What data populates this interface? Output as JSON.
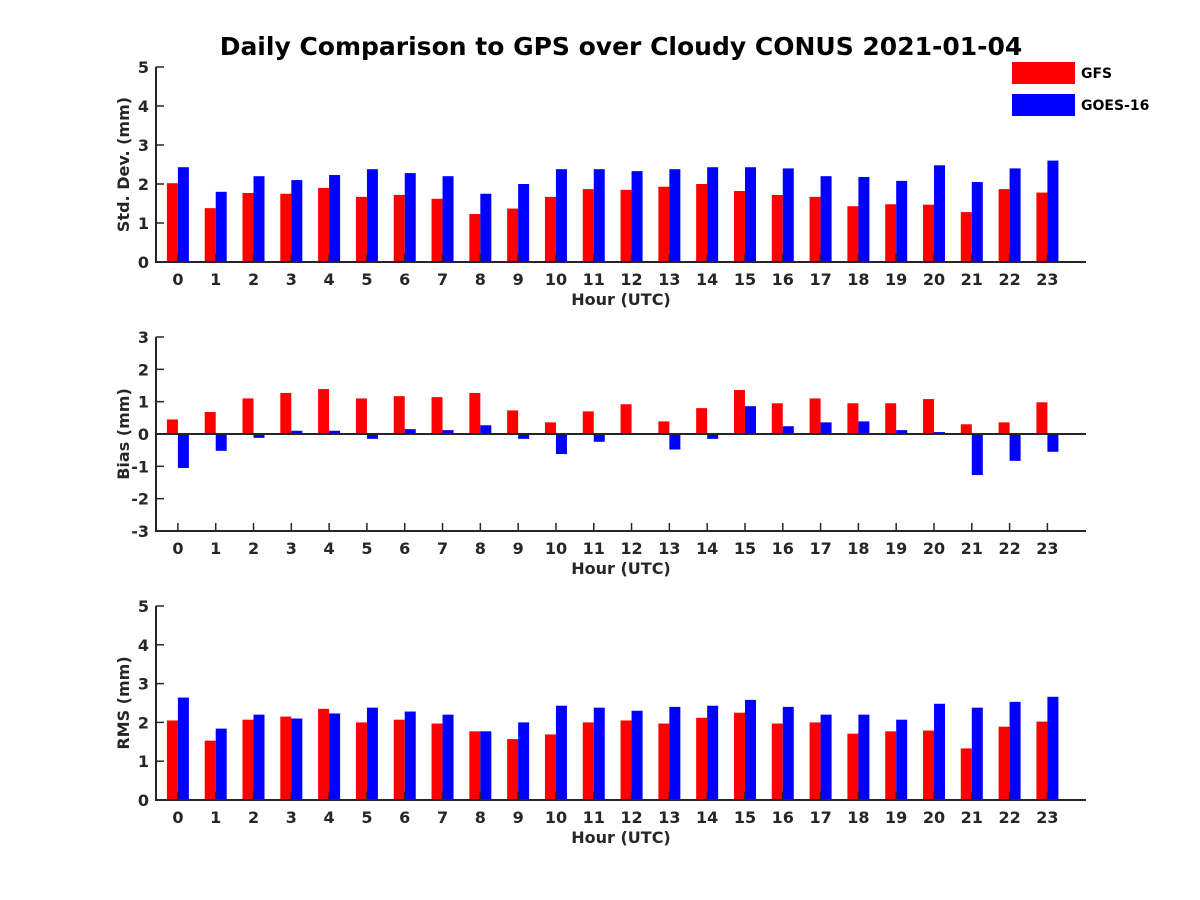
{
  "chart_data": {
    "title": "Daily Comparison to GPS over Cloudy CONUS 2021-01-04",
    "legend": {
      "placement": "top-right",
      "entries": [
        {
          "label": "GFS",
          "color": "#ff0000"
        },
        {
          "label": "GOES-16",
          "color": "#0000ff"
        }
      ]
    },
    "panels": [
      {
        "type": "bar",
        "xlabel": "Hour (UTC)",
        "ylabel": "Std. Dev. (mm)",
        "ylim": [
          0,
          5
        ],
        "yticks": [
          "0",
          "1",
          "2",
          "3",
          "4",
          "5"
        ],
        "categories": [
          "0",
          "1",
          "2",
          "3",
          "4",
          "5",
          "6",
          "7",
          "8",
          "9",
          "10",
          "11",
          "12",
          "13",
          "14",
          "15",
          "16",
          "17",
          "18",
          "19",
          "20",
          "21",
          "22",
          "23"
        ],
        "series": [
          {
            "name": "GFS",
            "color": "#ff0000",
            "values": [
              2.02,
              1.38,
              1.77,
              1.75,
              1.9,
              1.67,
              1.72,
              1.62,
              1.23,
              1.37,
              1.67,
              1.87,
              1.85,
              1.93,
              2.0,
              1.82,
              1.72,
              1.67,
              1.43,
              1.48,
              1.47,
              1.28,
              1.87,
              1.78
            ]
          },
          {
            "name": "GOES-16",
            "color": "#0000ff",
            "values": [
              2.43,
              1.8,
              2.2,
              2.1,
              2.23,
              2.38,
              2.28,
              2.2,
              1.75,
              2.0,
              2.38,
              2.38,
              2.33,
              2.38,
              2.43,
              2.43,
              2.4,
              2.2,
              2.18,
              2.08,
              2.48,
              2.05,
              2.4,
              2.6
            ]
          }
        ]
      },
      {
        "type": "bar",
        "xlabel": "Hour (UTC)",
        "ylabel": "Bias (mm)",
        "ylim": [
          -3,
          3
        ],
        "yticks": [
          "-3",
          "-2",
          "-1",
          "0",
          "1",
          "2",
          "3"
        ],
        "categories": [
          "0",
          "1",
          "2",
          "3",
          "4",
          "5",
          "6",
          "7",
          "8",
          "9",
          "10",
          "11",
          "12",
          "13",
          "14",
          "15",
          "16",
          "17",
          "18",
          "19",
          "20",
          "21",
          "22",
          "23"
        ],
        "series": [
          {
            "name": "GFS",
            "color": "#ff0000",
            "values": [
              0.45,
              0.68,
              1.1,
              1.27,
              1.39,
              1.1,
              1.17,
              1.14,
              1.27,
              0.73,
              0.36,
              0.7,
              0.92,
              0.39,
              0.8,
              1.36,
              0.95,
              1.1,
              0.95,
              0.95,
              1.08,
              0.3,
              0.36,
              0.98
            ]
          },
          {
            "name": "GOES-16",
            "color": "#0000ff",
            "values": [
              -1.05,
              -0.52,
              -0.12,
              0.1,
              0.1,
              -0.15,
              0.15,
              0.12,
              0.27,
              -0.15,
              -0.62,
              -0.24,
              0.0,
              -0.48,
              -0.15,
              0.86,
              0.24,
              0.36,
              0.39,
              0.12,
              0.06,
              -1.27,
              -0.83,
              -0.55
            ]
          }
        ]
      },
      {
        "type": "bar",
        "xlabel": "Hour (UTC)",
        "ylabel": "RMS (mm)",
        "ylim": [
          0,
          5
        ],
        "yticks": [
          "0",
          "1",
          "2",
          "3",
          "4",
          "5"
        ],
        "categories": [
          "0",
          "1",
          "2",
          "3",
          "4",
          "5",
          "6",
          "7",
          "8",
          "9",
          "10",
          "11",
          "12",
          "13",
          "14",
          "15",
          "16",
          "17",
          "18",
          "19",
          "20",
          "21",
          "22",
          "23"
        ],
        "series": [
          {
            "name": "GFS",
            "color": "#ff0000",
            "values": [
              2.05,
              1.53,
              2.07,
              2.15,
              2.35,
              2.0,
              2.07,
              1.97,
              1.77,
              1.57,
              1.69,
              2.0,
              2.05,
              1.97,
              2.12,
              2.25,
              1.97,
              2.0,
              1.71,
              1.77,
              1.79,
              1.33,
              1.89,
              2.02
            ]
          },
          {
            "name": "GOES-16",
            "color": "#0000ff",
            "values": [
              2.64,
              1.84,
              2.2,
              2.1,
              2.23,
              2.38,
              2.28,
              2.2,
              1.77,
              2.0,
              2.43,
              2.38,
              2.3,
              2.4,
              2.43,
              2.58,
              2.4,
              2.2,
              2.2,
              2.07,
              2.48,
              2.38,
              2.53,
              2.66
            ]
          }
        ]
      }
    ]
  }
}
